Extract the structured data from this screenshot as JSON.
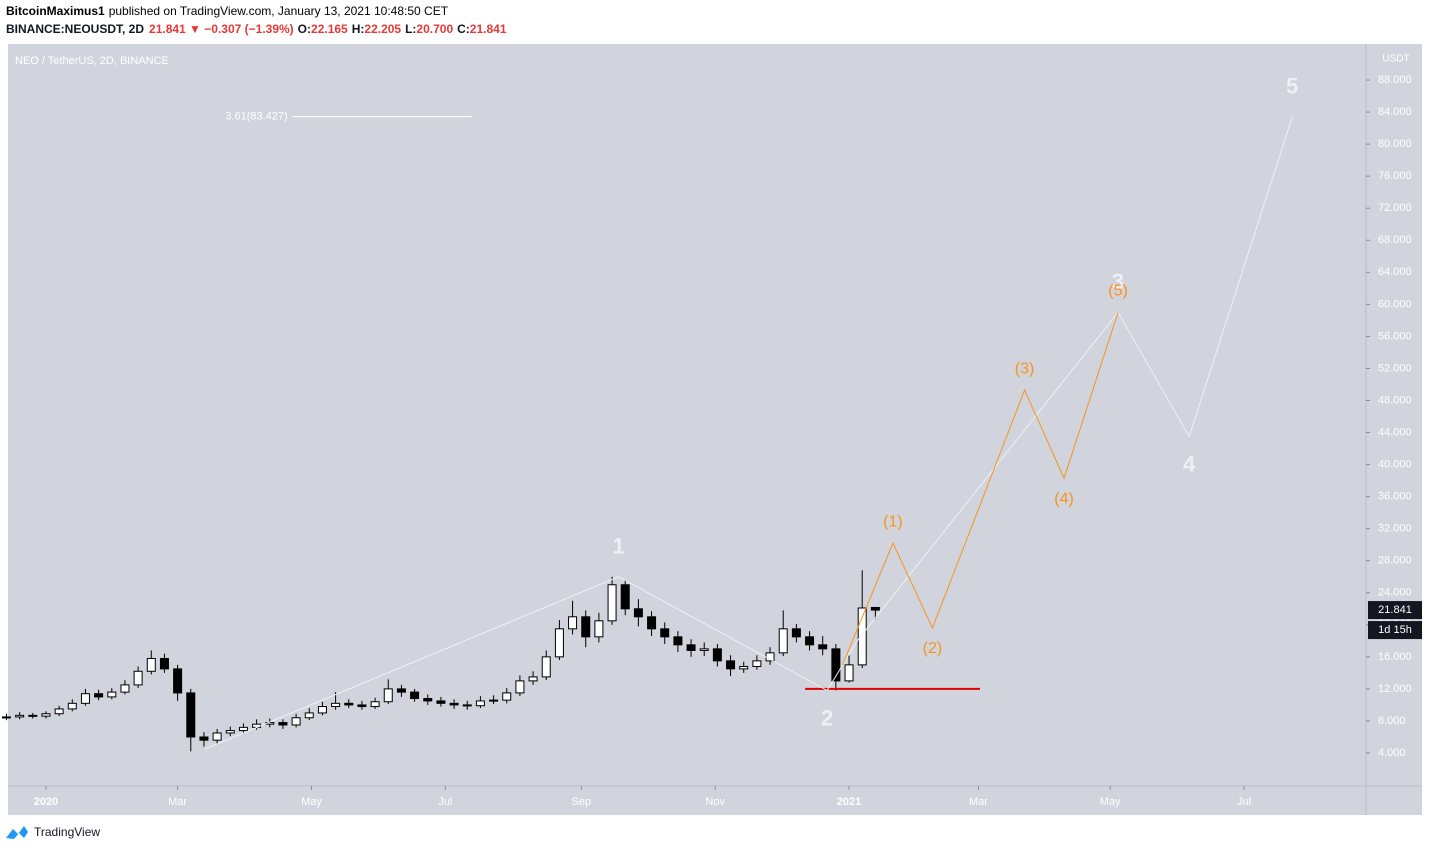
{
  "header": {
    "publisher": "BitcoinMaximus1",
    "published": "published on TradingView.com, January 13, 2021 10:48:50 CET",
    "quote": [
      {
        "text": "BINANCE:NEOUSDT, 2D",
        "color": "#131722"
      },
      {
        "text": "21.841 ▼ −0.307 (−1.39%)",
        "color": "#e53935"
      },
      {
        "text": "O:",
        "color": "#131722"
      },
      {
        "text": "22.165",
        "color": "#e53935"
      },
      {
        "text": "H:",
        "color": "#131722"
      },
      {
        "text": "22.205",
        "color": "#e53935"
      },
      {
        "text": "L:",
        "color": "#131722"
      },
      {
        "text": "20.700",
        "color": "#e53935"
      },
      {
        "text": "C:",
        "color": "#131722"
      },
      {
        "text": "21.841",
        "color": "#e53935"
      }
    ]
  },
  "footer": {
    "brand": "TradingView"
  },
  "chart_data": {
    "type": "candlestick",
    "title": "NEO / TetherUS, 2D, BINANCE",
    "y_unit": "USDT",
    "xlim": [
      -17.3,
      601.6
    ],
    "ylim": [
      -0.12,
      92.5
    ],
    "xticks": [
      {
        "value": 0,
        "label": "2020"
      },
      {
        "value": 60,
        "label": "Mar"
      },
      {
        "value": 121,
        "label": "May"
      },
      {
        "value": 182,
        "label": "Jul"
      },
      {
        "value": 244,
        "label": "Sep"
      },
      {
        "value": 305,
        "label": "Nov"
      },
      {
        "value": 366,
        "label": "2021"
      },
      {
        "value": 425,
        "label": "Mar"
      },
      {
        "value": 485,
        "label": "May"
      },
      {
        "value": 546,
        "label": "Jul"
      }
    ],
    "yticks": [
      {
        "value": 4,
        "label": "4.000"
      },
      {
        "value": 8,
        "label": "8.000"
      },
      {
        "value": 12,
        "label": "12.000"
      },
      {
        "value": 16,
        "label": "16.000"
      },
      {
        "value": 20,
        "label": "20.000"
      },
      {
        "value": 24,
        "label": "24.000"
      },
      {
        "value": 28,
        "label": "28.000"
      },
      {
        "value": 32,
        "label": "32.000"
      },
      {
        "value": 36,
        "label": "36.000"
      },
      {
        "value": 40,
        "label": "40.000"
      },
      {
        "value": 44,
        "label": "44.000"
      },
      {
        "value": 48,
        "label": "48.000"
      },
      {
        "value": 52,
        "label": "52.000"
      },
      {
        "value": 56,
        "label": "56.000"
      },
      {
        "value": 60,
        "label": "60.000"
      },
      {
        "value": 64,
        "label": "64.000"
      },
      {
        "value": 68,
        "label": "68.000"
      },
      {
        "value": 72,
        "label": "72.000"
      },
      {
        "value": 76,
        "label": "76.000"
      },
      {
        "value": 80,
        "label": "80.000"
      },
      {
        "value": 84,
        "label": "84.000"
      },
      {
        "value": 88,
        "label": "88.000"
      }
    ],
    "x": [
      -18,
      -12,
      -6,
      0,
      6,
      12,
      18,
      24,
      30,
      36,
      42,
      48,
      54,
      60,
      66,
      72,
      78,
      84,
      90,
      96,
      102,
      108,
      114,
      120,
      126,
      132,
      138,
      144,
      150,
      156,
      162,
      168,
      174,
      180,
      186,
      192,
      198,
      204,
      210,
      216,
      222,
      228,
      234,
      240,
      246,
      252,
      258,
      264,
      270,
      276,
      282,
      288,
      294,
      300,
      306,
      312,
      318,
      324,
      330,
      336,
      342,
      348,
      354,
      360,
      366,
      372,
      378
    ],
    "open": [
      8.4,
      8.5,
      8.7,
      8.6,
      8.9,
      9.5,
      10.2,
      11.4,
      11.0,
      11.6,
      12.5,
      14.2,
      15.8,
      14.5,
      11.5,
      6.0,
      5.6,
      6.5,
      6.8,
      7.2,
      7.6,
      7.8,
      7.5,
      8.4,
      9.0,
      9.8,
      10.2,
      10.0,
      9.8,
      10.4,
      12.0,
      11.6,
      10.8,
      10.5,
      10.2,
      10.0,
      9.9,
      10.5,
      10.6,
      11.5,
      13.0,
      13.5,
      16.0,
      19.5,
      21.0,
      18.5,
      20.5,
      25.0,
      22.0,
      21.0,
      19.5,
      18.5,
      17.5,
      16.8,
      17.0,
      15.5,
      14.5,
      14.8,
      15.5,
      16.5,
      19.5,
      18.5,
      17.5,
      17.0,
      13.0,
      15.0,
      22.165
    ],
    "high": [
      8.9,
      9.1,
      9.0,
      9.2,
      9.9,
      10.7,
      12.0,
      11.9,
      12.1,
      13.1,
      14.8,
      16.8,
      16.4,
      15.0,
      12.0,
      6.6,
      7.0,
      7.3,
      7.7,
      8.2,
      8.3,
      8.2,
      8.9,
      9.6,
      10.4,
      11.6,
      10.7,
      10.5,
      10.9,
      13.2,
      12.5,
      12.0,
      11.3,
      11.0,
      10.7,
      10.5,
      11.1,
      11.2,
      12.1,
      13.7,
      14.2,
      16.8,
      20.6,
      23.0,
      21.8,
      21.5,
      26.0,
      25.6,
      23.2,
      21.7,
      20.3,
      19.2,
      18.2,
      17.8,
      17.6,
      16.2,
      15.4,
      16.2,
      17.2,
      21.8,
      20.1,
      19.2,
      18.6,
      17.6,
      16.2,
      26.8,
      22.205
    ],
    "low": [
      8.1,
      8.2,
      8.3,
      8.3,
      8.6,
      9.2,
      9.9,
      10.6,
      10.7,
      11.3,
      12.1,
      13.8,
      14.0,
      10.5,
      4.2,
      4.8,
      5.2,
      6.1,
      6.4,
      6.9,
      7.2,
      7.0,
      7.2,
      8.1,
      8.7,
      9.4,
      9.6,
      9.4,
      9.5,
      10.1,
      11.0,
      10.4,
      10.0,
      9.8,
      9.5,
      9.4,
      9.6,
      10.1,
      10.2,
      11.1,
      12.5,
      13.1,
      15.6,
      18.8,
      17.2,
      17.8,
      20.0,
      21.2,
      19.8,
      18.6,
      17.6,
      16.6,
      16.0,
      16.1,
      14.8,
      13.6,
      14.0,
      14.4,
      15.0,
      16.1,
      17.8,
      16.8,
      16.2,
      11.8,
      12.8,
      14.6,
      20.7
    ],
    "close": [
      8.5,
      8.7,
      8.6,
      8.9,
      9.5,
      10.2,
      11.4,
      11.0,
      11.6,
      12.5,
      14.2,
      15.8,
      14.5,
      11.5,
      6.0,
      5.6,
      6.5,
      6.8,
      7.2,
      7.6,
      7.8,
      7.5,
      8.4,
      9.0,
      9.8,
      10.2,
      10.0,
      9.8,
      10.4,
      12.0,
      11.6,
      10.8,
      10.5,
      10.2,
      10.0,
      9.9,
      10.5,
      10.6,
      11.5,
      13.0,
      13.5,
      16.0,
      19.5,
      21.0,
      18.5,
      20.5,
      25.0,
      22.0,
      21.0,
      19.5,
      18.5,
      17.5,
      16.8,
      17.0,
      15.5,
      14.5,
      14.8,
      15.5,
      16.5,
      19.5,
      18.5,
      17.5,
      17.0,
      13.0,
      15.0,
      22.1,
      21.841
    ],
    "up_color": "#ffffff",
    "down_color": "#000000",
    "wick_color": "#000000",
    "last_price": 21.841,
    "countdown": "1d 15h",
    "fib_level": {
      "label": "3.61(83.427)",
      "value": 83.427,
      "x": [
        112,
        194
      ],
      "color": "#ffffff"
    },
    "support": {
      "value": 12,
      "x": [
        346,
        425.7
      ],
      "color": "#e00000"
    },
    "waves": [
      {
        "color": "#eef0f5",
        "x": [
          72.5,
          261,
          356,
          370,
          488.6,
          521,
          568
        ],
        "y": [
          4.5,
          26,
          11.8,
          18.1,
          59,
          43.5,
          83.4
        ],
        "labels": [
          null,
          "1",
          "2",
          null,
          "3",
          "4",
          "5"
        ],
        "label_side": [
          null,
          "above",
          "below",
          null,
          "above",
          "below",
          "above"
        ]
      },
      {
        "color": "#f7941d",
        "x": [
          363,
          386,
          404,
          446,
          464,
          488.6
        ],
        "y": [
          15,
          30.2,
          19.6,
          49.3,
          38.3,
          59
        ],
        "labels": [
          null,
          "(1)",
          "(2)",
          "(3)",
          "(4)",
          "(5)"
        ],
        "label_side": [
          null,
          "above",
          "below",
          "above",
          "below",
          "above"
        ]
      }
    ]
  }
}
